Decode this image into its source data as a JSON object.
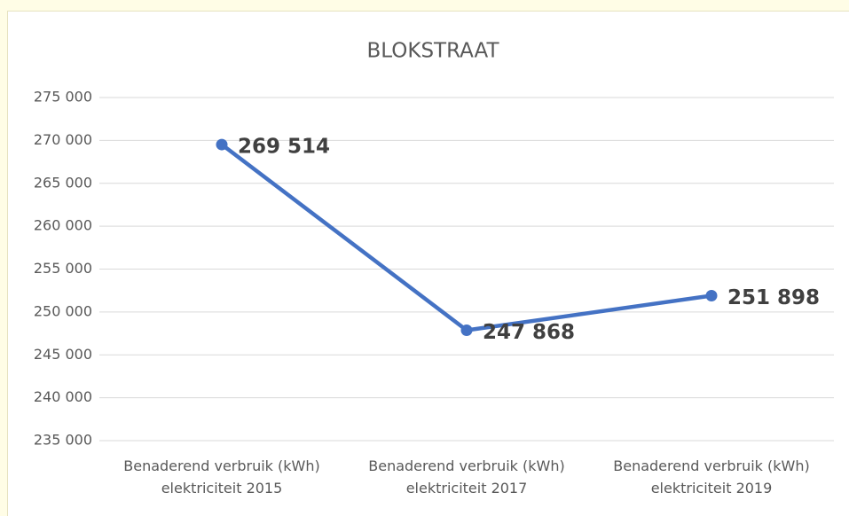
{
  "chart_data": {
    "type": "line",
    "title": "BLOKSTRAAT",
    "categories": [
      "Benaderend verbruik (kWh) elektriciteit 2015",
      "Benaderend verbruik (kWh) elektriciteit 2017",
      "Benaderend verbruik (kWh) elektriciteit 2019"
    ],
    "series": [
      {
        "name": "Benaderend verbruik",
        "color": "#4472c4",
        "values": [
          269514,
          247868,
          251898
        ],
        "value_labels": [
          "269 514",
          "247 868",
          "251 898"
        ]
      }
    ],
    "ylim": [
      235000,
      275000
    ],
    "yticks": [
      {
        "value": 235000,
        "label": "235 000"
      },
      {
        "value": 240000,
        "label": "240 000"
      },
      {
        "value": 245000,
        "label": "245 000"
      },
      {
        "value": 250000,
        "label": "250 000"
      },
      {
        "value": 255000,
        "label": "255 000"
      },
      {
        "value": 260000,
        "label": "260 000"
      },
      {
        "value": 265000,
        "label": "265 000"
      },
      {
        "value": 270000,
        "label": "270 000"
      },
      {
        "value": 275000,
        "label": "275 000"
      }
    ],
    "grid": true
  }
}
